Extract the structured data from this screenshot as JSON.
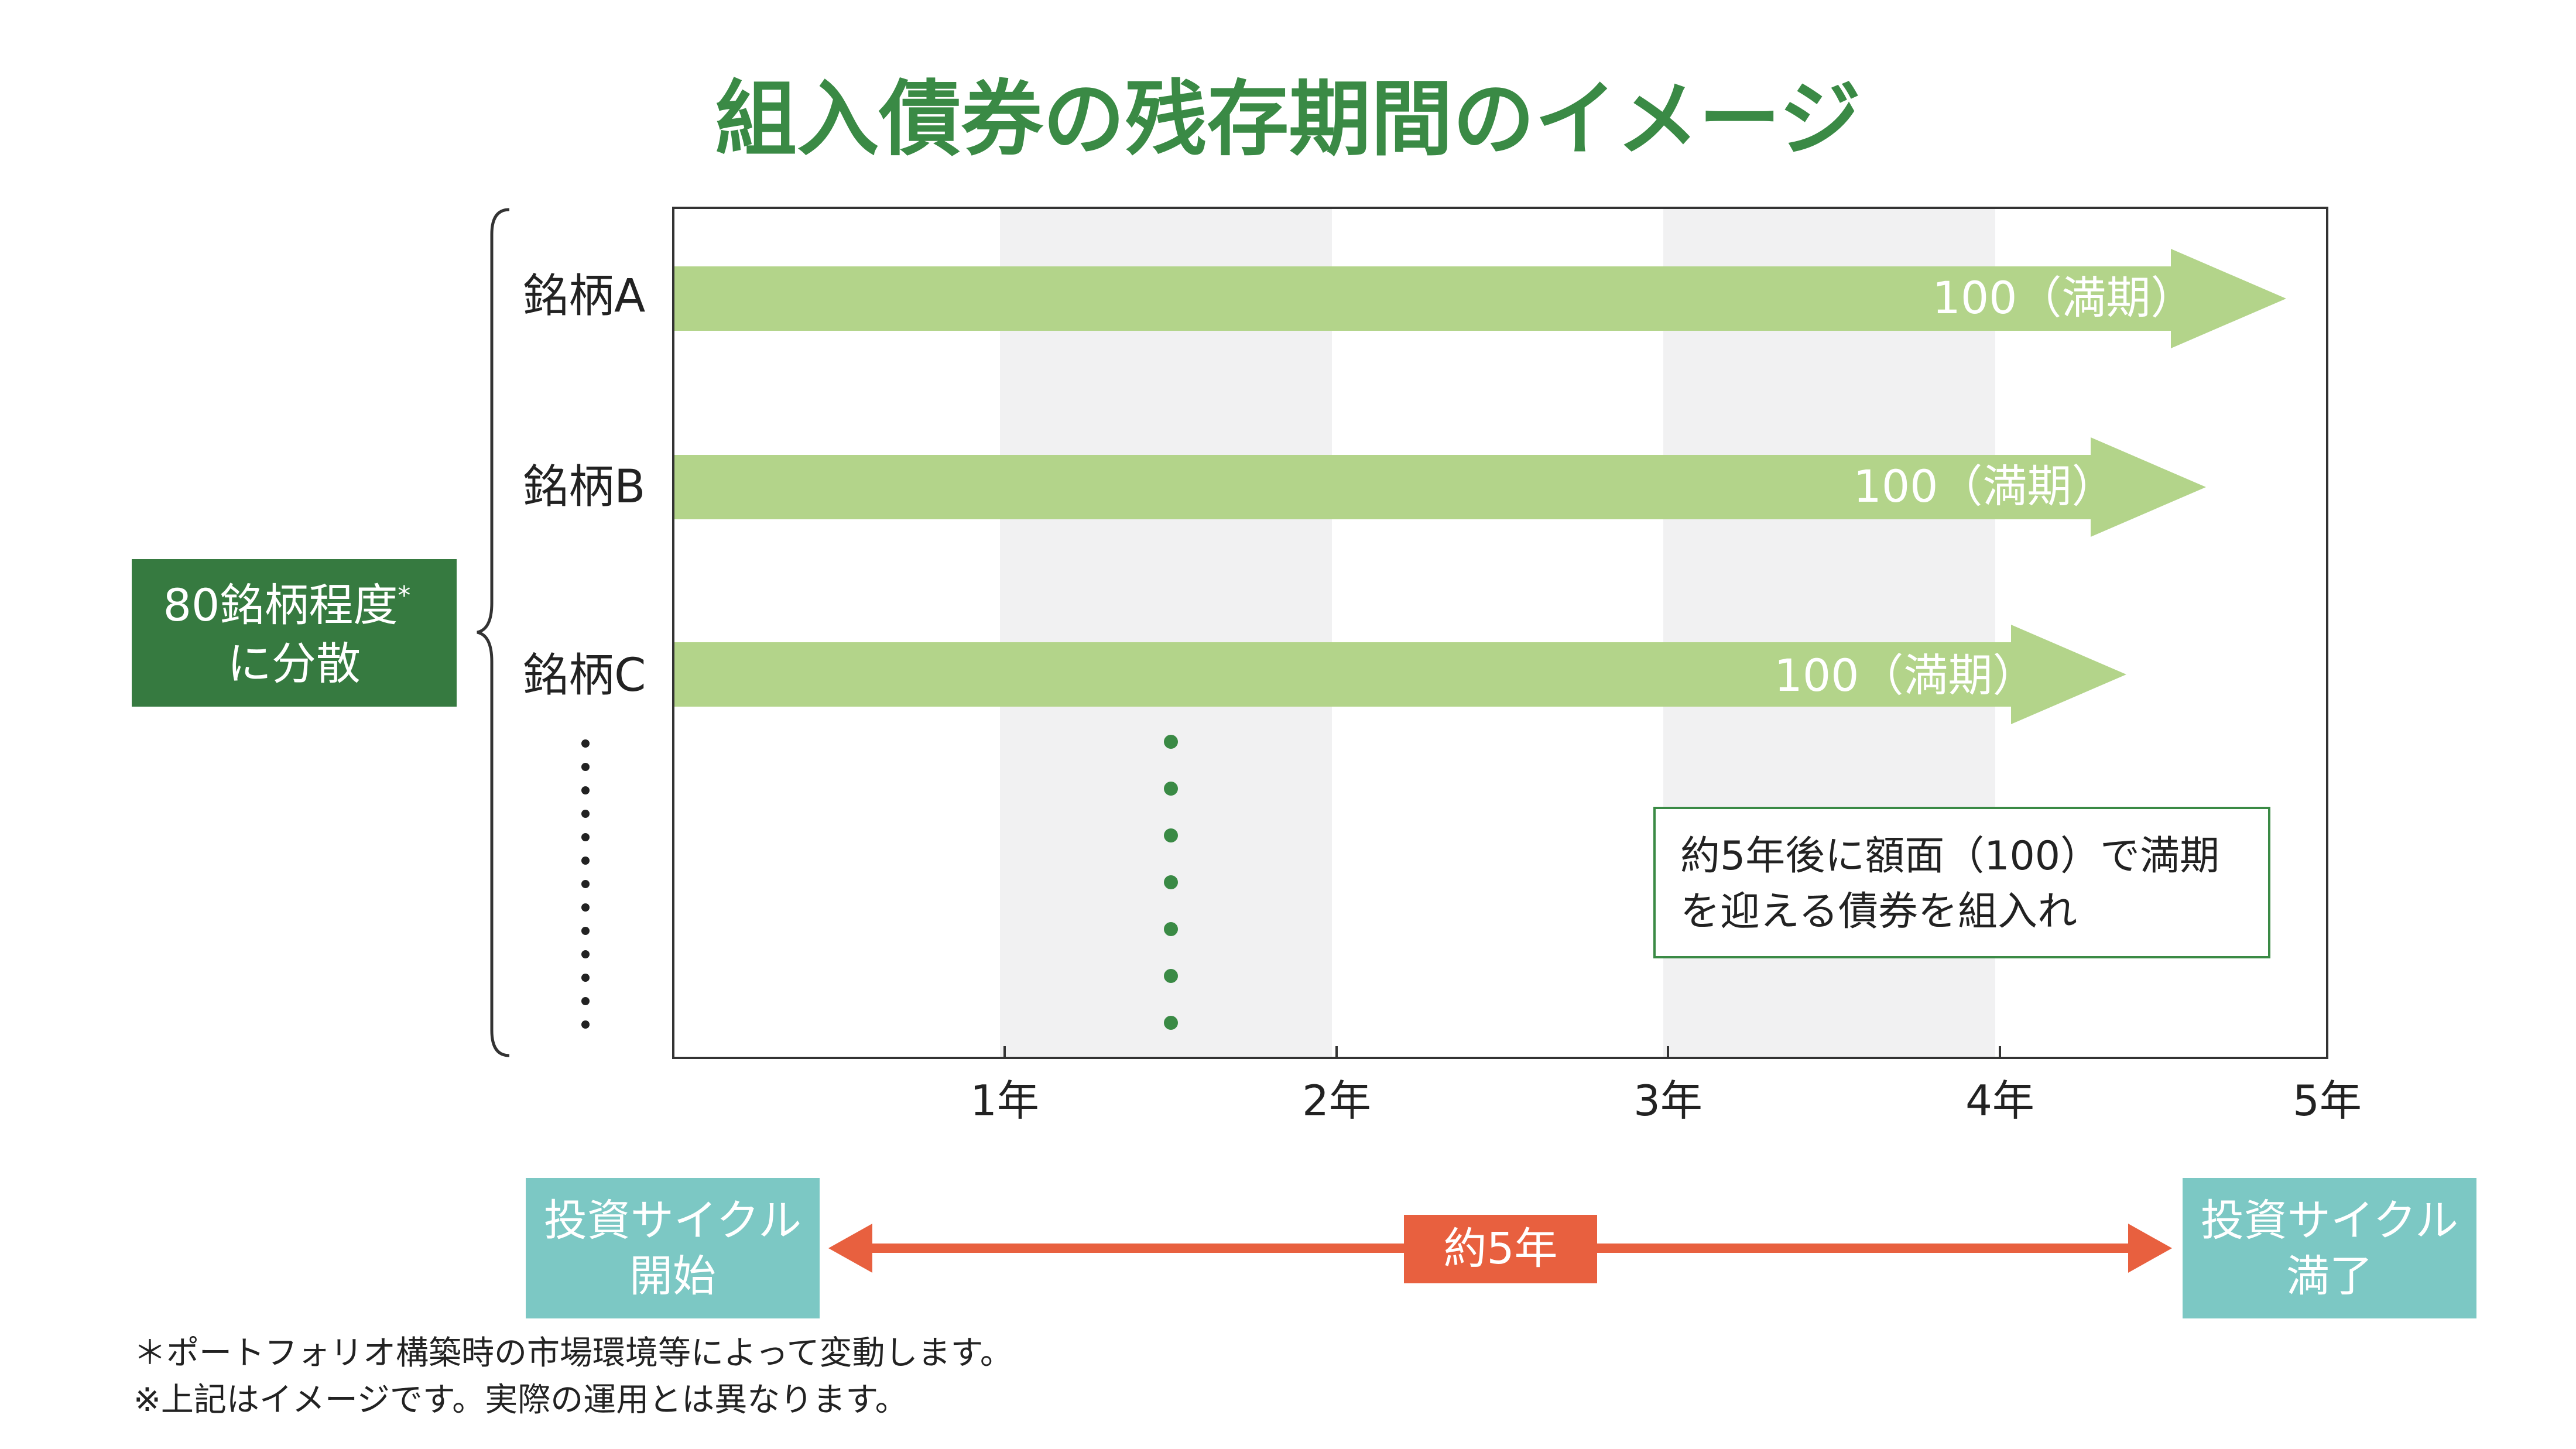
{
  "title": "組入債券の残存期間のイメージ",
  "colors": {
    "title_green": "#3a8a45",
    "dark_green": "#367a40",
    "bar_green": "#b3d48a",
    "band_gray": "#f1f1f2",
    "orange": "#e8603f",
    "teal": "#7cc8c4"
  },
  "group_label": {
    "line1": "80銘柄程度",
    "mark": "*",
    "line2": "に分散"
  },
  "bonds": [
    {
      "name": "銘柄A",
      "label": "100（満期）",
      "maturity_years": 4.85
    },
    {
      "name": "銘柄B",
      "label": "100（満期）",
      "maturity_years": 4.61
    },
    {
      "name": "銘柄C",
      "label": "100（満期）",
      "maturity_years": 4.37
    }
  ],
  "x_axis": {
    "ticks": [
      "1年",
      "2年",
      "3年",
      "4年",
      "5年"
    ],
    "range": [
      0,
      5
    ],
    "shaded_bands": [
      [
        1,
        2
      ],
      [
        3,
        4
      ]
    ]
  },
  "note_box": {
    "line1": "約5年後に額面（100）で満期",
    "line2": "を迎える債券を組入れ"
  },
  "cycle": {
    "start_line1": "投資サイクル",
    "start_line2": "開始",
    "end_line1": "投資サイクル",
    "end_line2": "満了",
    "duration": "約5年"
  },
  "footnotes": [
    "＊ポートフォリオ構築時の市場環境等によって変動します。",
    "※上記はイメージです。実際の運用とは異なります。"
  ]
}
